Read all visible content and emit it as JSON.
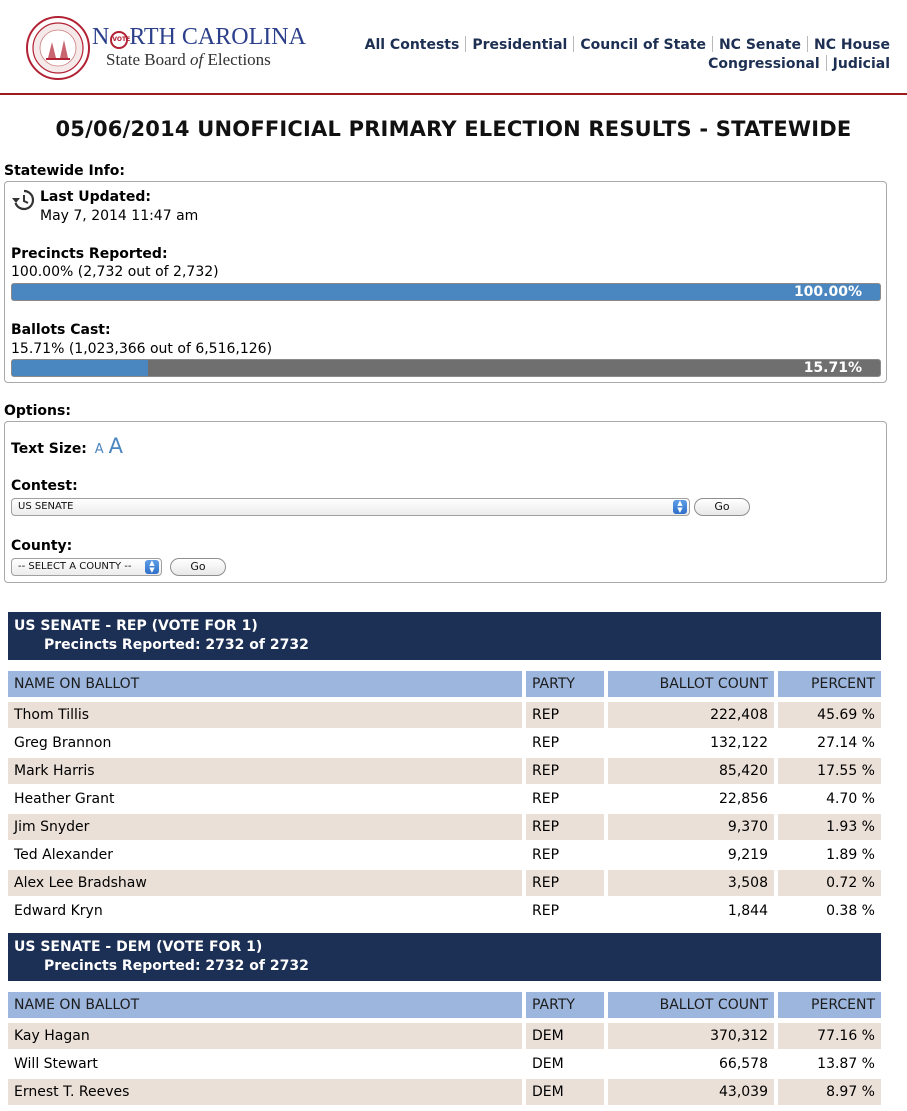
{
  "header": {
    "brand_title_pre": "N",
    "brand_title_vote": "VOTE",
    "brand_title_post": "RTH CAROLINA",
    "brand_sub_pre": "State Board ",
    "brand_sub_of": "of",
    "brand_sub_post": " Elections",
    "nav_row1": [
      "All Contests",
      "Presidential",
      "Council of State",
      "NC Senate",
      "NC House"
    ],
    "nav_row2": [
      "Congressional",
      "Judicial"
    ]
  },
  "page_title": "05/06/2014 UNOFFICIAL PRIMARY ELECTION RESULTS - STATEWIDE",
  "statewide_info": {
    "section_label": "Statewide Info:",
    "last_updated_label": "Last Updated:",
    "last_updated_value": "May 7, 2014 11:47 am",
    "precincts_label": "Precincts Reported:",
    "precincts_value": "100.00% (2,732 out of 2,732)",
    "precincts_bar_text": "100.00%",
    "precincts_fraction": 1.0,
    "ballots_label": "Ballots Cast:",
    "ballots_value": "15.71% (1,023,366 out of 6,516,126)",
    "ballots_bar_text": "15.71%",
    "ballots_fraction": 0.1571
  },
  "options": {
    "section_label": "Options:",
    "text_size_label": "Text Size:",
    "text_size_small": "A",
    "text_size_large": "A",
    "contest_label": "Contest:",
    "contest_selected": "US SENATE",
    "go_label": "Go",
    "county_label": "County:",
    "county_selected": "-- SELECT A COUNTY --"
  },
  "columns": [
    "NAME ON BALLOT",
    "PARTY",
    "BALLOT COUNT",
    "PERCENT"
  ],
  "contests": [
    {
      "title": "US SENATE - REP (VOTE FOR 1)",
      "precincts": "Precincts Reported: 2732 of 2732",
      "rows": [
        [
          "Thom Tillis",
          "REP",
          "222,408",
          "45.69 %"
        ],
        [
          "Greg Brannon",
          "REP",
          "132,122",
          "27.14 %"
        ],
        [
          "Mark Harris",
          "REP",
          "85,420",
          "17.55 %"
        ],
        [
          "Heather Grant",
          "REP",
          "22,856",
          "4.70 %"
        ],
        [
          "Jim Snyder",
          "REP",
          "9,370",
          "1.93 %"
        ],
        [
          "Ted Alexander",
          "REP",
          "9,219",
          "1.89 %"
        ],
        [
          "Alex Lee Bradshaw",
          "REP",
          "3,508",
          "0.72 %"
        ],
        [
          "Edward Kryn",
          "REP",
          "1,844",
          "0.38 %"
        ]
      ]
    },
    {
      "title": "US SENATE - DEM (VOTE FOR 1)",
      "precincts": "Precincts Reported: 2732 of 2732",
      "rows": [
        [
          "Kay Hagan",
          "DEM",
          "370,312",
          "77.16 %"
        ],
        [
          "Will Stewart",
          "DEM",
          "66,578",
          "13.87 %"
        ],
        [
          "Ernest T. Reeves",
          "DEM",
          "43,039",
          "8.97 %"
        ]
      ]
    }
  ],
  "colors": {
    "nav_text": "#1d2f52",
    "rule": "#9a1b1b",
    "contest_header": "#1c2f55",
    "table_header": "#9db6dd",
    "row_shade": "#ebe0d8",
    "bar_fill": "#4a86bf",
    "bar_track": "#6f6f6f"
  }
}
